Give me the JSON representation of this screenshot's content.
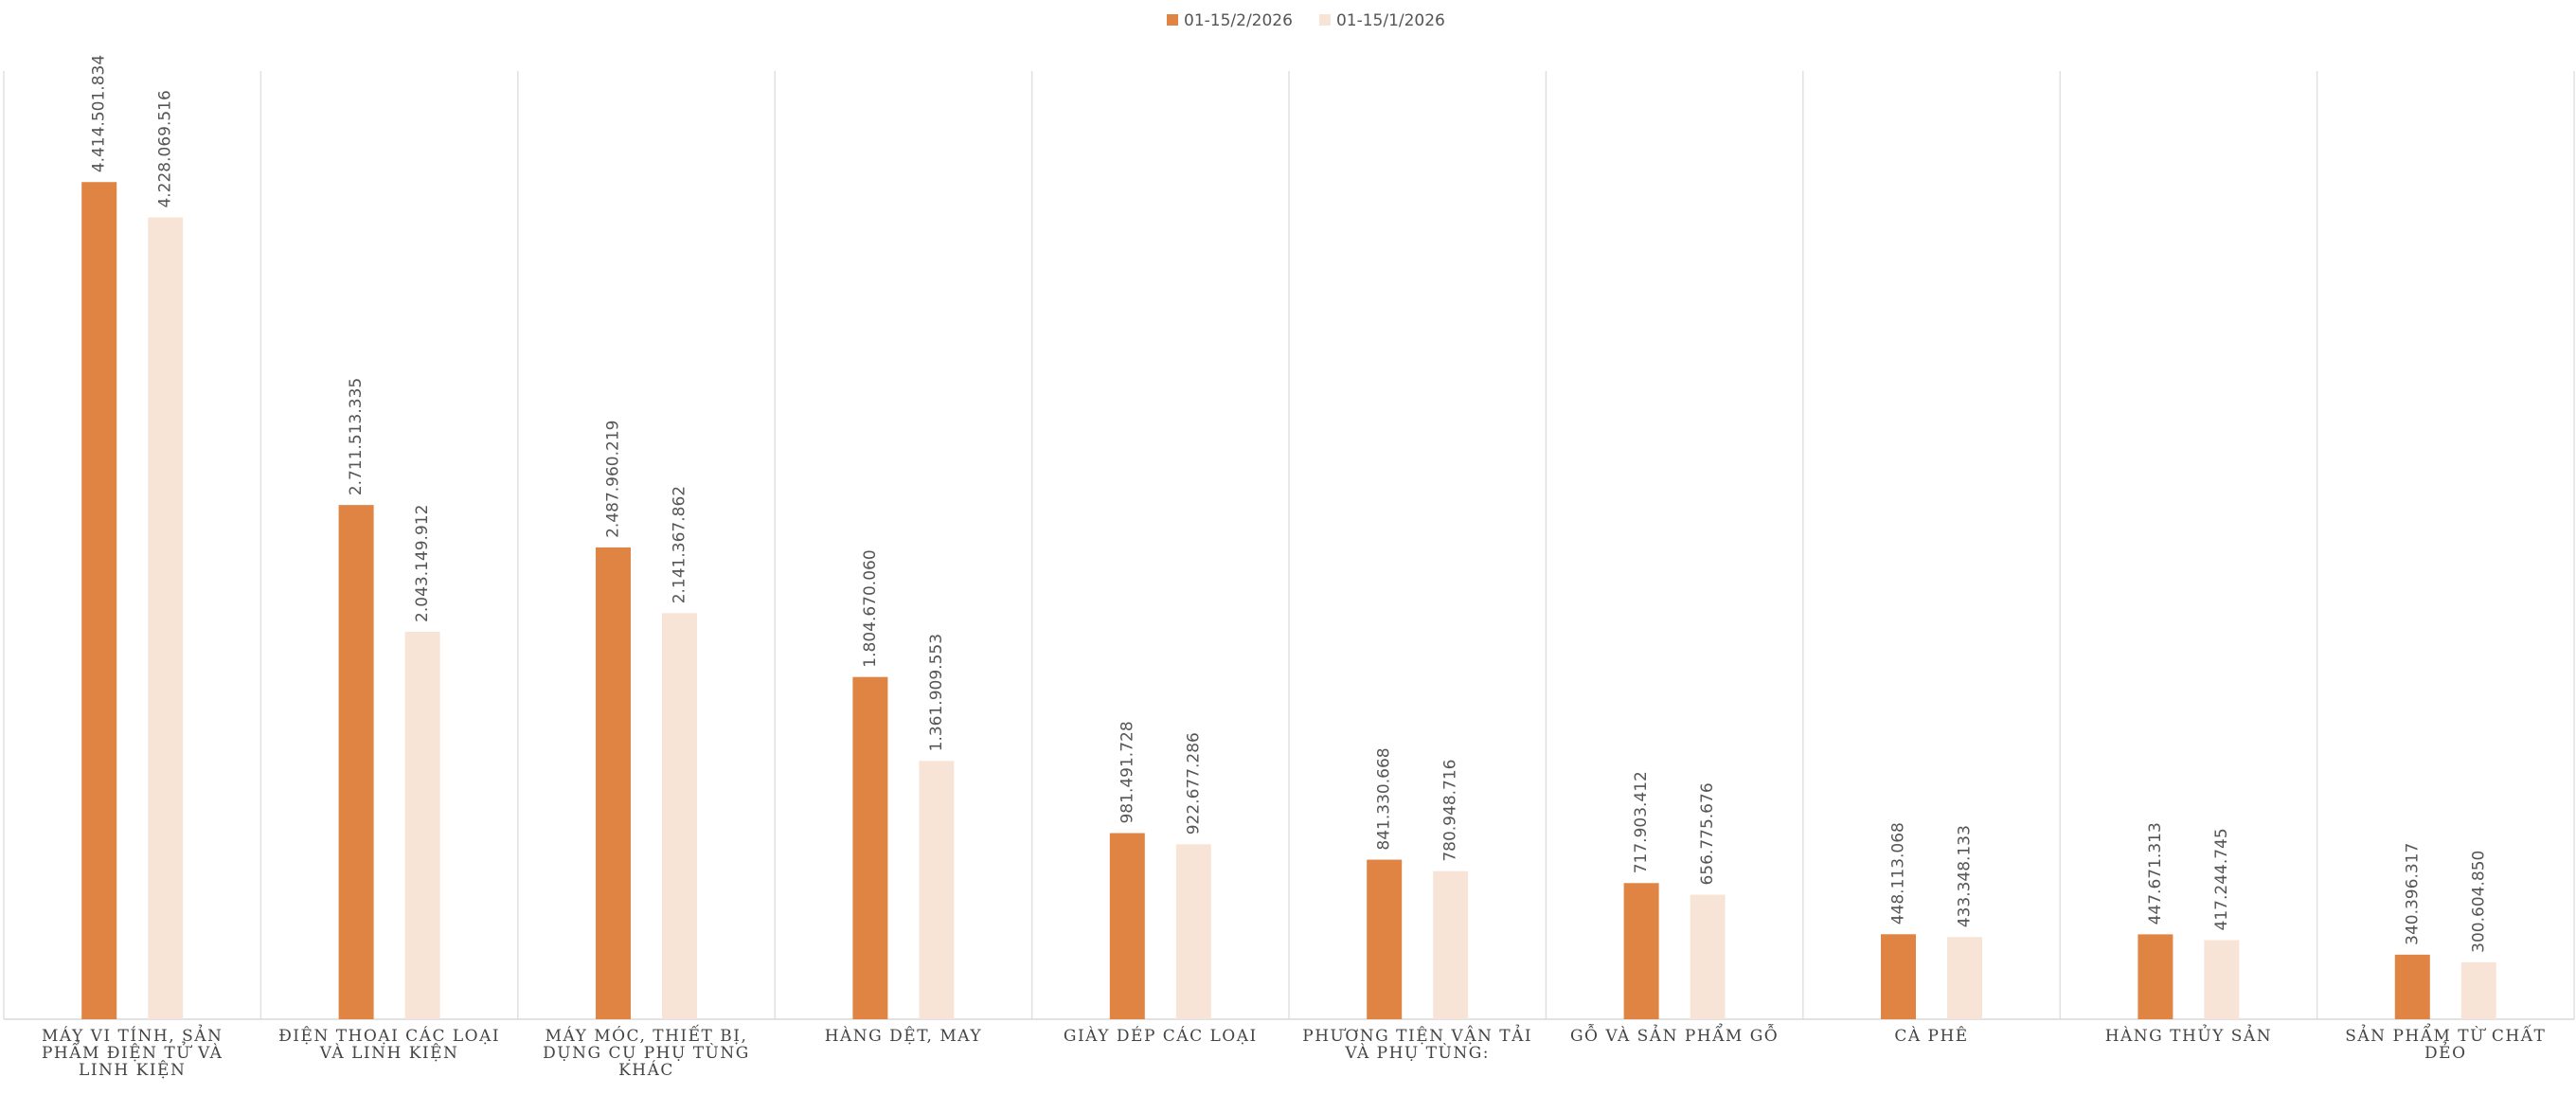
{
  "chart_data": {
    "type": "bar",
    "categories": [
      "MÁY VI TÍNH, SẢN PHẨM ĐIỆN TỬ VÀ LINH KIỆN",
      "ĐIỆN THOẠI CÁC LOẠI VÀ LINH KIỆN",
      "MÁY MÓC, THIẾT BỊ, DỤNG CỤ PHỤ TÙNG KHÁC",
      "HÀNG DỆT, MAY",
      "GIÀY DÉP CÁC LOẠI",
      "PHƯƠNG TIỆN VẬN TẢI VÀ PHỤ TÙNG:",
      "GỖ VÀ SẢN PHẨM GỖ",
      "CÀ PHÊ",
      "HÀNG THỦY SẢN",
      "SẢN PHẨM TỪ CHẤT DẺO"
    ],
    "series": [
      {
        "name": "01-15/2/2026",
        "color": "#e08443",
        "values": [
          4414501834,
          2711513335,
          2487960219,
          1804670060,
          981491728,
          841330668,
          717903412,
          448113068,
          447671313,
          340396317
        ],
        "value_labels": [
          "4.414.501.834",
          "2.711.513.335",
          "2.487.960.219",
          "1.804.670.060",
          "981.491.728",
          "841.330.668",
          "717.903.412",
          "448.113.068",
          "447.671.313",
          "340.396.317"
        ]
      },
      {
        "name": "01-15/1/2026",
        "color": "#f7e4d6",
        "values": [
          4228069516,
          2043149912,
          2141367862,
          1361909553,
          922677286,
          780948716,
          656775676,
          433348133,
          417244745,
          300604850
        ],
        "value_labels": [
          "4.228.069.516",
          "2.043.149.912",
          "2.141.367.862",
          "1.361.909.553",
          "922.677.286",
          "780.948.716",
          "656.775.676",
          "433.348.133",
          "417.244.745",
          "300.604.850"
        ]
      }
    ],
    "ylim": [
      0,
      5000000000
    ],
    "legend": "top"
  }
}
